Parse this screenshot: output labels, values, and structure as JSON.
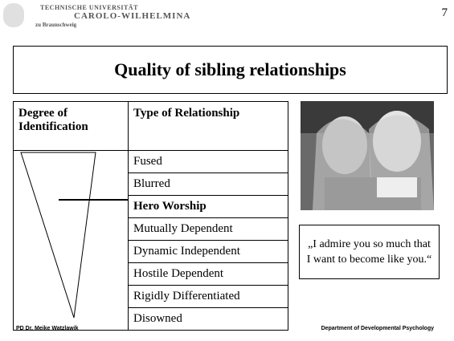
{
  "header": {
    "logo": [
      "TECHNISCHE UNIVERSITÄT",
      "CAROLO-WILHELMINA",
      "zu Braunschweig"
    ],
    "page_number": "7"
  },
  "title": "Quality of sibling relationships",
  "table": {
    "headers": [
      "Degree of Identification",
      "Type of Relationship"
    ],
    "rows": [
      "Fused",
      "Blurred",
      "Hero Worship",
      "Mutually Dependent",
      "Dynamic Independent",
      "Hostile Dependent",
      "Rigidly Differentiated",
      "Disowned"
    ]
  },
  "quote": "„I admire you so much that I want to become like you.“",
  "footer": {
    "left": "PD Dr. Meike Watzlawik",
    "right": "Department of Developmental Psychology"
  }
}
